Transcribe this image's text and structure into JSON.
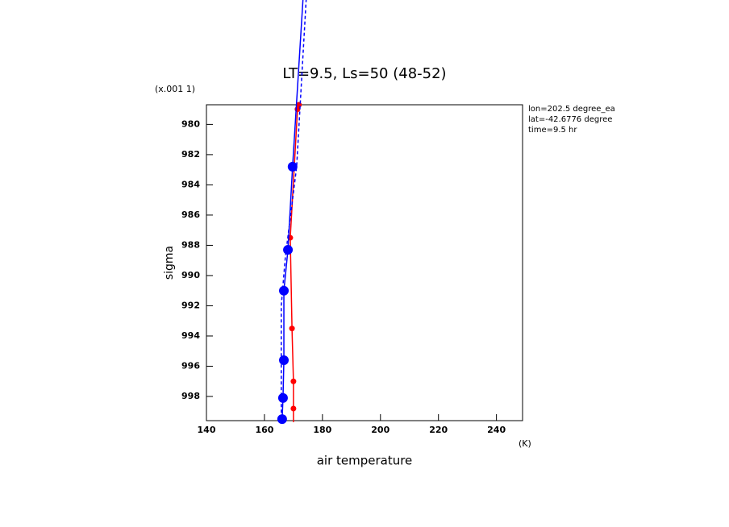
{
  "chart_data": {
    "type": "line",
    "title": "LT=9.5, Ls=50 (48-52)",
    "y_scale_note": "(x.001 1)",
    "ylabel": "sigma",
    "xlabel": "air temperature",
    "x_unit": "(K)",
    "notes": [
      "lon=202.5 degree_ea",
      "lat=-42.6776 degree",
      "time=9.5 hr"
    ],
    "xlim": [
      140,
      249
    ],
    "xticks": [
      140,
      160,
      180,
      200,
      220,
      240
    ],
    "ylim": [
      999.6,
      978.7
    ],
    "yticks": [
      980,
      982,
      984,
      986,
      988,
      990,
      992,
      994,
      996,
      998
    ],
    "series": [
      {
        "color": "#ff0000",
        "dash": false,
        "marker": 3.5,
        "x": [
          171.9,
          171.4,
          168.9,
          169.5,
          170,
          170,
          170
        ],
        "values": [
          978.7,
          979.0,
          987.5,
          993.5,
          997,
          998.8,
          999.7
        ]
      },
      {
        "color": "#0000ff",
        "dash": false,
        "marker": 6,
        "x": [
          173.3,
          169.7,
          168.1,
          166.7,
          166.7,
          166.4,
          166.1
        ],
        "values": [
          971.7,
          982.8,
          988.3,
          991.0,
          995.6,
          998.1,
          999.5
        ]
      },
      {
        "color": "#0000ff",
        "dash": true,
        "marker": 0,
        "x": [
          174.4,
          171.1,
          167.2,
          165.8,
          165.8
        ],
        "values": [
          971.7,
          982.8,
          988.8,
          992.0,
          999.6
        ]
      }
    ]
  }
}
